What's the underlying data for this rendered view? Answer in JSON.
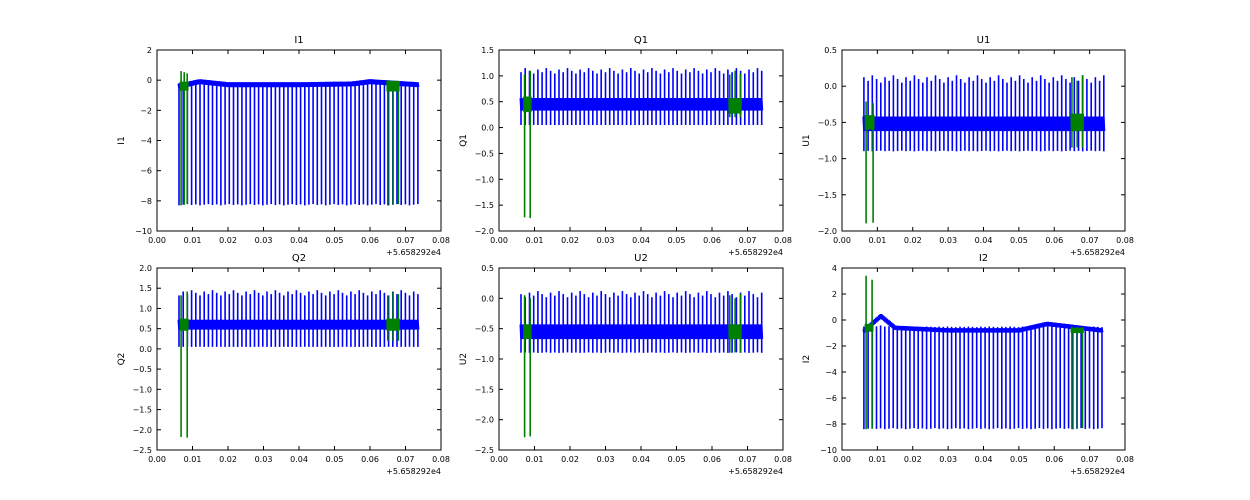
{
  "figure": {
    "background": "#ffffff"
  },
  "chart_data": [
    {
      "type": "line",
      "title": "I1",
      "ylabel": "I1",
      "xlabel": "",
      "xlim": [
        0.0,
        0.08
      ],
      "ylim": [
        -10,
        2
      ],
      "xticks": [
        "0.00",
        "0.01",
        "0.02",
        "0.03",
        "0.04",
        "0.05",
        "0.06",
        "0.07",
        "0.08"
      ],
      "yticks": [
        "−10",
        "−8",
        "−6",
        "−4",
        "−2",
        "0",
        "2"
      ],
      "offset_text": "+5.658292e4",
      "grid": false,
      "legend": "none",
      "series": [
        {
          "color": "#0000ff",
          "x_start": 0.0062,
          "x_end": 0.0735,
          "baseline": -0.4,
          "band": 0.15,
          "spike_min": -8.3,
          "spike_max": -0.2,
          "spike_count": 58,
          "envelope": [
            [
              0.006,
              -0.4
            ],
            [
              0.012,
              -0.1
            ],
            [
              0.02,
              -0.3
            ],
            [
              0.04,
              -0.3
            ],
            [
              0.055,
              -0.25
            ],
            [
              0.06,
              -0.1
            ],
            [
              0.0735,
              -0.3
            ]
          ]
        },
        {
          "color": "#008000",
          "x_start": 0.0068,
          "x_end": 0.0085,
          "baseline": -0.4,
          "band": 0.3,
          "spike_min": -8.3,
          "spike_max": 0.6,
          "spike_count": 3
        },
        {
          "color": "#008000",
          "x_start": 0.065,
          "x_end": 0.068,
          "baseline": -0.4,
          "band": 0.35,
          "spike_min": -8.3,
          "spike_max": 0.0,
          "spike_count": 3
        }
      ]
    },
    {
      "type": "line",
      "title": "Q1",
      "ylabel": "Q1",
      "xlabel": "",
      "xlim": [
        0.0,
        0.08
      ],
      "ylim": [
        -2.0,
        1.5
      ],
      "xticks": [
        "0.00",
        "0.01",
        "0.02",
        "0.03",
        "0.04",
        "0.05",
        "0.06",
        "0.07",
        "0.08"
      ],
      "yticks": [
        "−2.0",
        "−1.5",
        "−1.0",
        "−0.5",
        "0.0",
        "0.5",
        "1.0",
        "1.5"
      ],
      "offset_text": "+5.658292e4",
      "grid": false,
      "legend": "none",
      "series": [
        {
          "color": "#0000ff",
          "x_start": 0.0062,
          "x_end": 0.074,
          "baseline": 0.45,
          "band": 0.12,
          "spike_min": 0.05,
          "spike_max": 1.15,
          "spike_count": 58
        },
        {
          "color": "#008000",
          "x_start": 0.0072,
          "x_end": 0.0088,
          "baseline": 0.45,
          "band": 0.15,
          "spike_min": -1.75,
          "spike_max": 1.1,
          "spike_count": 2
        },
        {
          "color": "#008000",
          "x_start": 0.065,
          "x_end": 0.068,
          "baseline": 0.42,
          "band": 0.15,
          "spike_min": 0.2,
          "spike_max": 1.1,
          "spike_count": 3
        }
      ]
    },
    {
      "type": "line",
      "title": "U1",
      "ylabel": "U1",
      "xlabel": "",
      "xlim": [
        0.0,
        0.08
      ],
      "ylim": [
        -2.0,
        0.5
      ],
      "xticks": [
        "0.00",
        "0.01",
        "0.02",
        "0.03",
        "0.04",
        "0.05",
        "0.06",
        "0.07",
        "0.08"
      ],
      "yticks": [
        "−2.0",
        "−1.5",
        "−1.0",
        "−0.5",
        "0.0",
        "0.5"
      ],
      "offset_text": "+5.658292e4",
      "grid": false,
      "legend": "none",
      "series": [
        {
          "color": "#0000ff",
          "x_start": 0.0062,
          "x_end": 0.074,
          "baseline": -0.52,
          "band": 0.1,
          "spike_min": -0.9,
          "spike_max": 0.15,
          "spike_count": 58
        },
        {
          "color": "#008000",
          "x_start": 0.0068,
          "x_end": 0.0088,
          "baseline": -0.5,
          "band": 0.1,
          "spike_min": -1.9,
          "spike_max": -0.2,
          "spike_count": 2
        },
        {
          "color": "#008000",
          "x_start": 0.065,
          "x_end": 0.068,
          "baseline": -0.5,
          "band": 0.12,
          "spike_min": -0.85,
          "spike_max": 0.15,
          "spike_count": 3
        }
      ]
    },
    {
      "type": "line",
      "title": "Q2",
      "ylabel": "Q2",
      "xlabel": "",
      "xlim": [
        0.0,
        0.08
      ],
      "ylim": [
        -2.5,
        2.0
      ],
      "xticks": [
        "0.00",
        "0.01",
        "0.02",
        "0.03",
        "0.04",
        "0.05",
        "0.06",
        "0.07",
        "0.08"
      ],
      "yticks": [
        "−2.5",
        "−2.0",
        "−1.5",
        "−1.0",
        "−0.5",
        "0.0",
        "0.5",
        "1.0",
        "1.5",
        "2.0"
      ],
      "offset_text": "+5.658292e4",
      "grid": false,
      "legend": "none",
      "series": [
        {
          "color": "#0000ff",
          "x_start": 0.0062,
          "x_end": 0.0735,
          "baseline": 0.6,
          "band": 0.12,
          "spike_min": 0.05,
          "spike_max": 1.45,
          "spike_count": 58
        },
        {
          "color": "#008000",
          "x_start": 0.0068,
          "x_end": 0.0085,
          "baseline": 0.6,
          "band": 0.15,
          "spike_min": -2.2,
          "spike_max": 1.45,
          "spike_count": 2
        },
        {
          "color": "#008000",
          "x_start": 0.065,
          "x_end": 0.068,
          "baseline": 0.6,
          "band": 0.15,
          "spike_min": 0.2,
          "spike_max": 1.45,
          "spike_count": 3
        }
      ]
    },
    {
      "type": "line",
      "title": "U2",
      "ylabel": "U2",
      "xlabel": "",
      "xlim": [
        0.0,
        0.08
      ],
      "ylim": [
        -2.5,
        0.5
      ],
      "xticks": [
        "0.00",
        "0.01",
        "0.02",
        "0.03",
        "0.04",
        "0.05",
        "0.06",
        "0.07",
        "0.08"
      ],
      "yticks": [
        "−2.5",
        "−2.0",
        "−1.5",
        "−1.0",
        "−0.5",
        "0.0",
        "0.5"
      ],
      "offset_text": "+5.658292e4",
      "grid": false,
      "legend": "none",
      "series": [
        {
          "color": "#0000ff",
          "x_start": 0.0062,
          "x_end": 0.074,
          "baseline": -0.55,
          "band": 0.12,
          "spike_min": -0.9,
          "spike_max": 0.12,
          "spike_count": 58
        },
        {
          "color": "#008000",
          "x_start": 0.0072,
          "x_end": 0.0088,
          "baseline": -0.55,
          "band": 0.12,
          "spike_min": -2.3,
          "spike_max": 0.1,
          "spike_count": 2
        },
        {
          "color": "#008000",
          "x_start": 0.065,
          "x_end": 0.068,
          "baseline": -0.55,
          "band": 0.12,
          "spike_min": -0.9,
          "spike_max": 0.1,
          "spike_count": 3
        }
      ]
    },
    {
      "type": "line",
      "title": "I2",
      "ylabel": "I2",
      "xlabel": "",
      "xlim": [
        0.0,
        0.08
      ],
      "ylim": [
        -10,
        4
      ],
      "xticks": [
        "0.00",
        "0.01",
        "0.02",
        "0.03",
        "0.04",
        "0.05",
        "0.06",
        "0.07",
        "0.08"
      ],
      "yticks": [
        "−10",
        "−8",
        "−6",
        "−4",
        "−2",
        "0",
        "2",
        "4"
      ],
      "offset_text": "+5.658292e4",
      "grid": false,
      "legend": "none",
      "series": [
        {
          "color": "#0000ff",
          "x_start": 0.0062,
          "x_end": 0.0735,
          "baseline": -0.9,
          "band": 0.15,
          "spike_min": -8.4,
          "spike_max": -0.5,
          "spike_count": 58,
          "envelope": [
            [
              0.006,
              -0.9
            ],
            [
              0.011,
              0.3
            ],
            [
              0.015,
              -0.6
            ],
            [
              0.03,
              -0.8
            ],
            [
              0.05,
              -0.8
            ],
            [
              0.058,
              -0.3
            ],
            [
              0.0735,
              -0.8
            ]
          ]
        },
        {
          "color": "#008000",
          "x_start": 0.0068,
          "x_end": 0.0085,
          "baseline": -0.6,
          "band": 0.3,
          "spike_min": -8.4,
          "spike_max": 3.4,
          "spike_count": 2
        },
        {
          "color": "#008000",
          "x_start": 0.065,
          "x_end": 0.068,
          "baseline": -0.8,
          "band": 0.2,
          "spike_min": -8.4,
          "spike_max": -0.5,
          "spike_count": 3
        }
      ]
    }
  ]
}
